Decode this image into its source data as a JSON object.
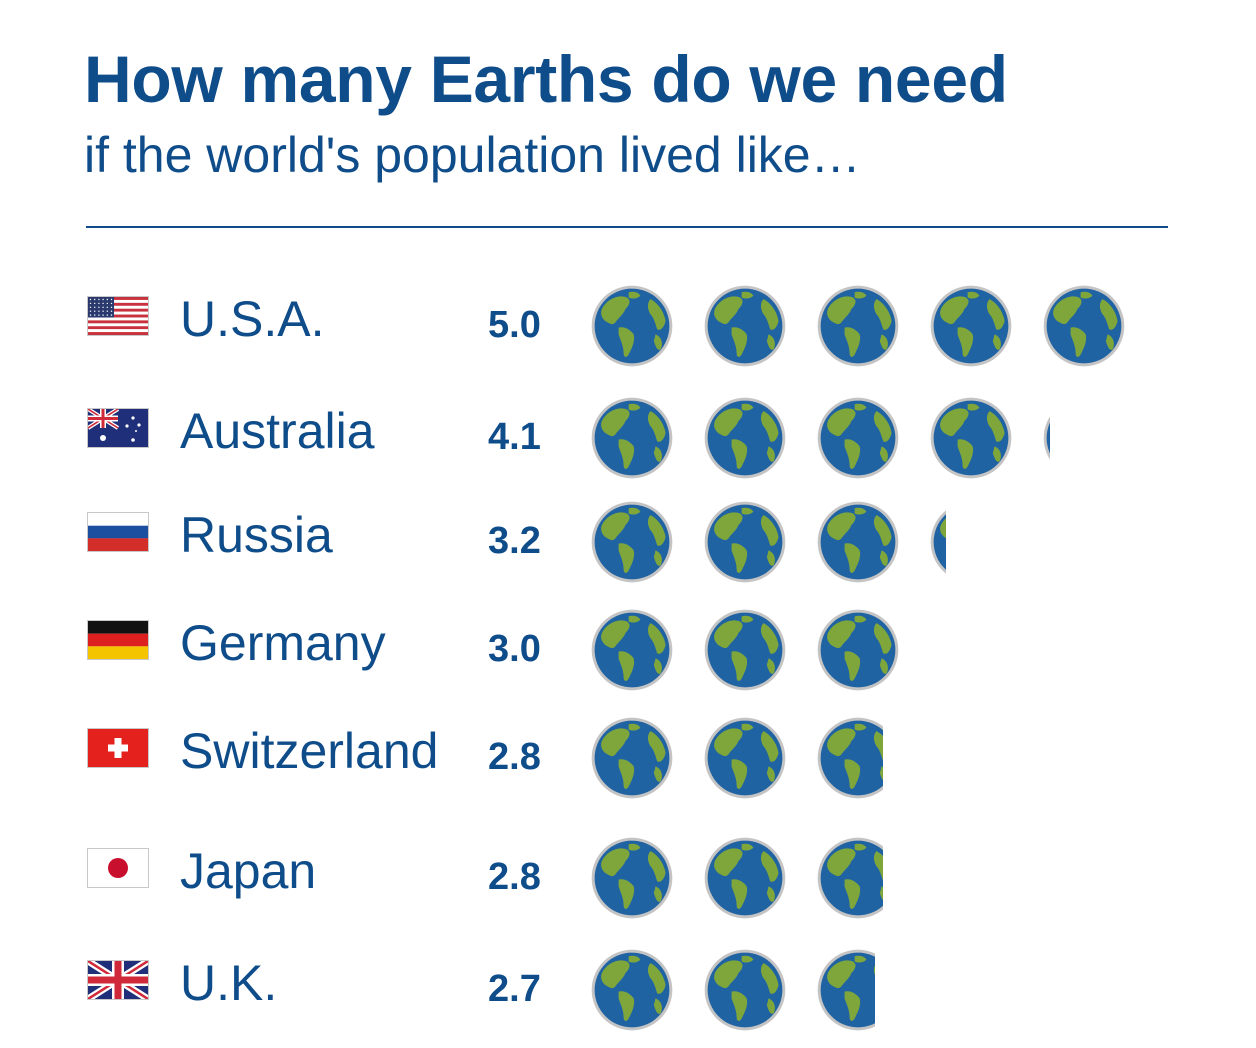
{
  "title": "How many Earths do we need",
  "subtitle": "if the world's population lived like…",
  "colors": {
    "text": "#0f4c8a",
    "ocean": "#1f63a3",
    "land": "#7fa63b",
    "globe_rim": "#c4c4c4"
  },
  "chart_data": {
    "type": "pictogram",
    "unit_icon": "earth-globe-icon",
    "categories": [
      "U.S.A.",
      "Australia",
      "Russia",
      "Germany",
      "Switzerland",
      "Japan",
      "U.K."
    ],
    "values": [
      5.0,
      4.1,
      3.2,
      3.0,
      2.8,
      2.8,
      2.7
    ],
    "value_labels": [
      "5.0",
      "4.1",
      "3.2",
      "3.0",
      "2.8",
      "2.8",
      "2.7"
    ],
    "flags": [
      "usa-flag-icon",
      "australia-flag-icon",
      "russia-flag-icon",
      "germany-flag-icon",
      "switzerland-flag-icon",
      "japan-flag-icon",
      "uk-flag-icon"
    ]
  }
}
